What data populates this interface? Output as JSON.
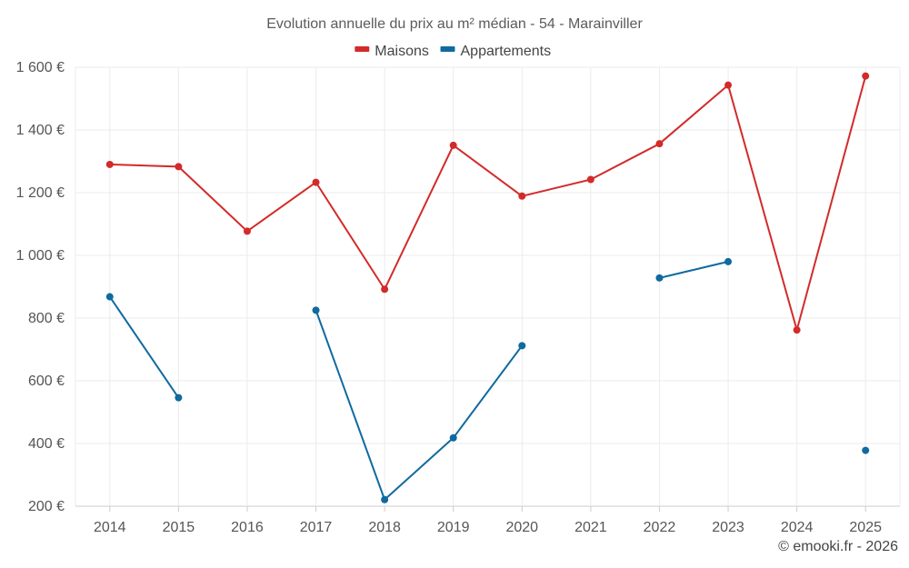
{
  "chart_data": {
    "type": "line",
    "title": "Evolution annuelle du prix au m² médian - 54 - Marainviller",
    "categories": [
      "2014",
      "2015",
      "2016",
      "2017",
      "2018",
      "2019",
      "2020",
      "2021",
      "2022",
      "2023",
      "2024",
      "2025"
    ],
    "y_ticks": [
      "200 €",
      "400 €",
      "600 €",
      "800 €",
      "1 000 €",
      "1 200 €",
      "1 400 €",
      "1 600 €"
    ],
    "y_tick_values": [
      200,
      400,
      600,
      800,
      1000,
      1200,
      1400,
      1600
    ],
    "ylim": [
      200,
      1600
    ],
    "legend_position": "top-center",
    "series": [
      {
        "name": "Maisons",
        "color": "#d32a2a",
        "values": [
          1290,
          1283,
          1077,
          1233,
          892,
          1351,
          1189,
          1242,
          1356,
          1543,
          762,
          1572
        ]
      },
      {
        "name": "Appartements",
        "color": "#0f6aa0",
        "values": [
          868,
          546,
          null,
          825,
          221,
          418,
          712,
          null,
          928,
          980,
          null,
          378
        ]
      }
    ]
  },
  "footer": {
    "credit": "© emooki.fr - 2026"
  }
}
